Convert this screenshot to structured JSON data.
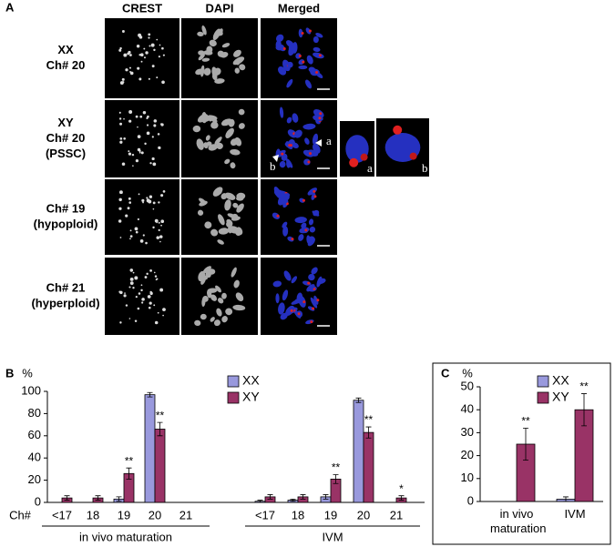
{
  "panel_a": {
    "label": "A",
    "columns": [
      "CREST",
      "DAPI",
      "Merged"
    ],
    "rows": [
      [
        "XX",
        "Ch# 20"
      ],
      [
        "XY",
        "Ch# 20",
        "(PSSC)"
      ],
      [
        "Ch# 19",
        "(hypoploid)"
      ],
      [
        "Ch# 21",
        "(hyperploid)"
      ]
    ],
    "arrows": [
      "a",
      "b"
    ],
    "insets": [
      "a",
      "b"
    ]
  },
  "chart_data": [
    {
      "type": "bar",
      "panel_label": "B",
      "y_label": "%",
      "x_label": "Ch#",
      "categories": [
        "<17",
        "18",
        "19",
        "20",
        "21",
        "<17",
        "18",
        "19",
        "20",
        "21"
      ],
      "group_labels": [
        "in vivo maturation",
        "IVM"
      ],
      "series": [
        {
          "name": "XX",
          "color": "#9999dd",
          "values": [
            0,
            0,
            3,
            97,
            0,
            1,
            2,
            5,
            92,
            0
          ],
          "errors": [
            0,
            0,
            2,
            2,
            0,
            1,
            1,
            2,
            2,
            0
          ],
          "significance": [
            null,
            null,
            null,
            null,
            null,
            null,
            null,
            null,
            null,
            null
          ]
        },
        {
          "name": "XY",
          "color": "#993366",
          "values": [
            4,
            4,
            26,
            66,
            0,
            5,
            5,
            21,
            63,
            4
          ],
          "errors": [
            2,
            2,
            5,
            6,
            0,
            2,
            2,
            4,
            5,
            2
          ],
          "significance": [
            null,
            null,
            "**",
            "**",
            null,
            null,
            null,
            "**",
            "**",
            "*"
          ]
        }
      ],
      "ylim": [
        0,
        100
      ],
      "yticks": [
        0,
        20,
        40,
        60,
        80,
        100
      ]
    },
    {
      "type": "bar",
      "panel_label": "C",
      "y_label": "%",
      "categories": [
        "in vivo maturation",
        "IVM"
      ],
      "series": [
        {
          "name": "XX",
          "color": "#9999dd",
          "values": [
            0,
            1
          ],
          "errors": [
            0,
            1
          ],
          "significance": [
            null,
            null
          ]
        },
        {
          "name": "XY",
          "color": "#993366",
          "values": [
            25,
            40
          ],
          "errors": [
            7,
            7
          ],
          "significance": [
            "**",
            "**"
          ]
        }
      ],
      "ylim": [
        0,
        50
      ],
      "yticks": [
        0,
        10,
        20,
        30,
        40,
        50
      ]
    }
  ]
}
